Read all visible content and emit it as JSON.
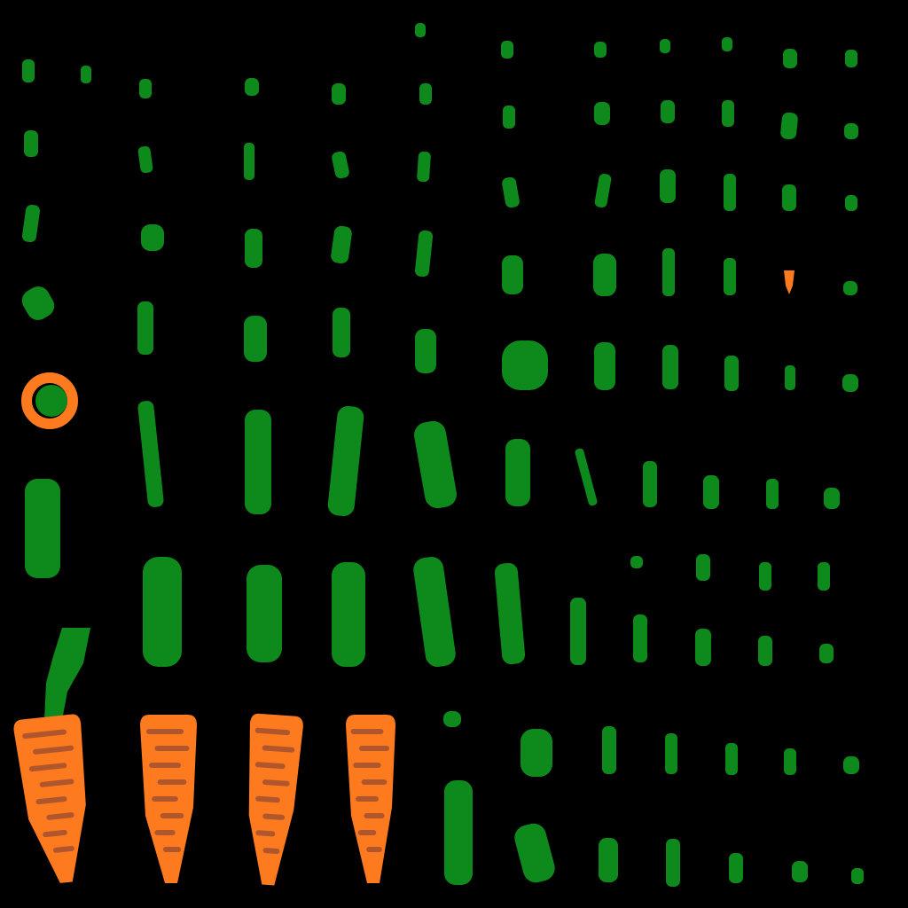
{
  "colors": {
    "background": "#000000",
    "leaf": "#0e8a1c",
    "carrot_body": "#fe7a1f",
    "carrot_stripe": "#b0562c",
    "ring": "#fe7a1f"
  },
  "sprites": {
    "leaf_count": 110,
    "carrot_count": 4,
    "ring_count": 1,
    "stem_count": 1
  }
}
